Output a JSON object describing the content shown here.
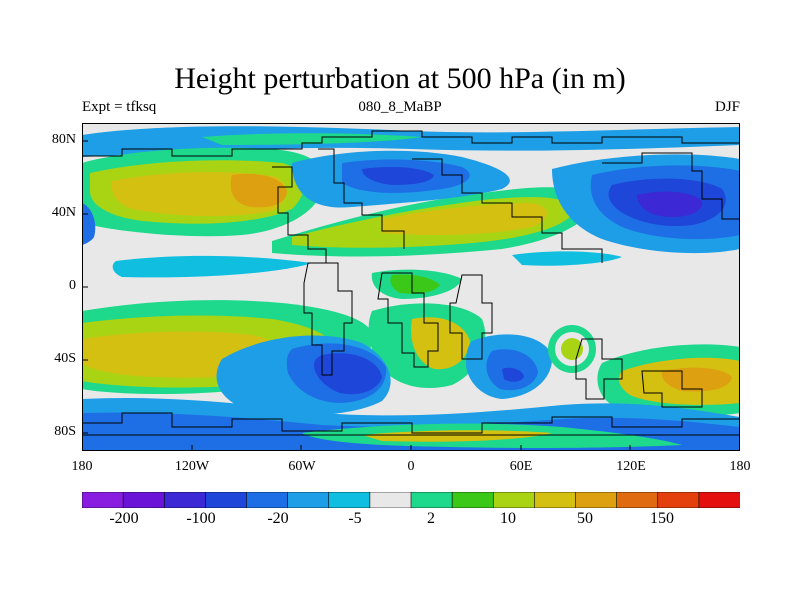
{
  "title": "Height perturbation at 500 hPa (in m)",
  "subtitle_left": "Expt = tfksq",
  "subtitle_center": "080_8_MaBP",
  "subtitle_right": "DJF",
  "lat_ticks": [
    "80N",
    "40N",
    "0",
    "40S",
    "80S"
  ],
  "lon_ticks": [
    "180",
    "120W",
    "60W",
    "0",
    "60E",
    "120E",
    "180"
  ],
  "colorbar_labels": [
    "-200",
    "-100",
    "-20",
    "-5",
    "2",
    "10",
    "50",
    "150"
  ],
  "colorbar_colors": [
    "#8a1ee0",
    "#6a14d8",
    "#3c28d4",
    "#1e46d8",
    "#1e6ee6",
    "#1e9ee6",
    "#10bfe0",
    "#e8e8e8",
    "#1ed88c",
    "#3cc818",
    "#a8d414",
    "#d4c010",
    "#dca010",
    "#e06a10",
    "#e4400e",
    "#e41010"
  ],
  "colors": {
    "neutral": "#e8e8e8",
    "strong_negative": "#3c28d4",
    "negative": "#1e6ee6",
    "weak_negative": "#10bfe0",
    "weak_positive": "#1ed88c",
    "positive": "#3cc818",
    "strong_positive": "#d4c010",
    "very_strong_positive": "#dca010",
    "extreme_positive": "#e06a10"
  }
}
